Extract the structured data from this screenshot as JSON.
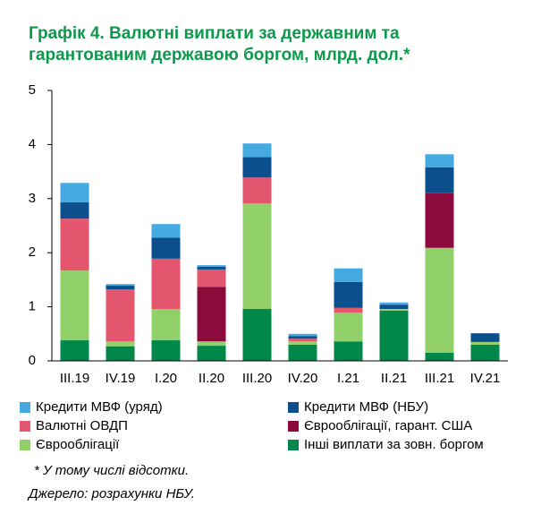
{
  "chart_data": {
    "type": "stacked_bar",
    "title": [
      "Графік 4. Валютні виплати за державним та",
      "гарантованим державою боргом, млрд. дол.*"
    ],
    "categories": [
      "III.19",
      "IV.19",
      "I.20",
      "II.20",
      "III.20",
      "IV.20",
      "I.21",
      "II.21",
      "III.21",
      "IV.21"
    ],
    "series": [
      {
        "name": "Інші виплати за зовн. боргом",
        "color": "#00884a",
        "values": [
          0.38,
          0.27,
          0.38,
          0.28,
          0.96,
          0.3,
          0.36,
          0.93,
          0.15,
          0.3
        ]
      },
      {
        "name": "Єврооблігації",
        "color": "#92d06a",
        "values": [
          1.29,
          0.09,
          0.58,
          0.08,
          1.95,
          0.06,
          0.53,
          0.03,
          1.94,
          0.05
        ]
      },
      {
        "name": "Єврооблігації, гарант. США",
        "color": "#8c0a3c",
        "values": [
          0,
          0,
          0,
          1.01,
          0,
          0,
          0,
          0,
          1.01,
          0
        ]
      },
      {
        "name": "Валютні ОВДП",
        "color": "#e4566e",
        "values": [
          0.96,
          0.96,
          0.93,
          0.32,
          0.48,
          0.05,
          0.09,
          0,
          0,
          0
        ]
      },
      {
        "name": "Кредити МВФ (НБУ)",
        "color": "#0b4f8c",
        "values": [
          0.3,
          0.07,
          0.39,
          0.05,
          0.38,
          0.05,
          0.48,
          0.08,
          0.48,
          0.16
        ]
      },
      {
        "name": "Кредити МВФ (уряд)",
        "color": "#45aae2",
        "values": [
          0.36,
          0.03,
          0.25,
          0.03,
          0.25,
          0.04,
          0.25,
          0.04,
          0.24,
          0
        ]
      }
    ],
    "ylim": [
      0,
      5
    ],
    "yticks": [
      0,
      1,
      2,
      3,
      4,
      5
    ],
    "notes": [
      "* У тому числі відсотки.",
      "Джерело: розрахунки НБУ."
    ]
  }
}
